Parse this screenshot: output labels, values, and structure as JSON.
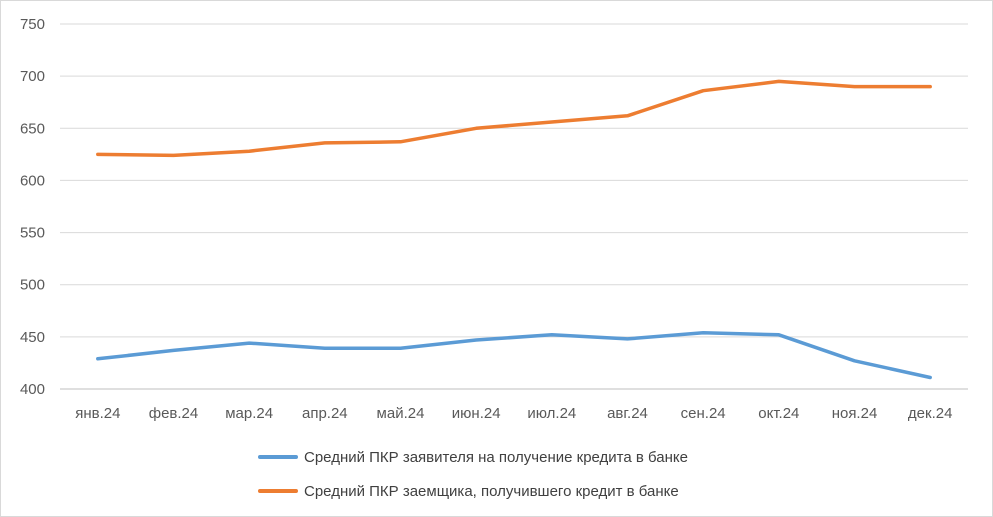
{
  "chart_data": {
    "type": "line",
    "title": "",
    "xlabel": "",
    "ylabel": "",
    "categories": [
      "янв.24",
      "фев.24",
      "мар.24",
      "апр.24",
      "май.24",
      "июн.24",
      "июл.24",
      "авг.24",
      "сен.24",
      "окт.24",
      "ноя.24",
      "дек.24"
    ],
    "y_ticks": [
      "400",
      "450",
      "500",
      "550",
      "600",
      "650",
      "700",
      "750"
    ],
    "ylim": [
      400,
      750
    ],
    "grid": true,
    "legend_position": "bottom",
    "series": [
      {
        "name": "Средний ПКР заявителя на получение кредита в банке",
        "color": "#5b9bd5",
        "values": [
          429,
          437,
          444,
          439,
          439,
          447,
          452,
          448,
          454,
          452,
          427,
          411
        ]
      },
      {
        "name": "Средний ПКР заемщика, получившего кредит в банке",
        "color": "#ed7d31",
        "values": [
          625,
          624,
          628,
          636,
          637,
          650,
          656,
          662,
          686,
          695,
          690,
          690
        ]
      }
    ]
  }
}
